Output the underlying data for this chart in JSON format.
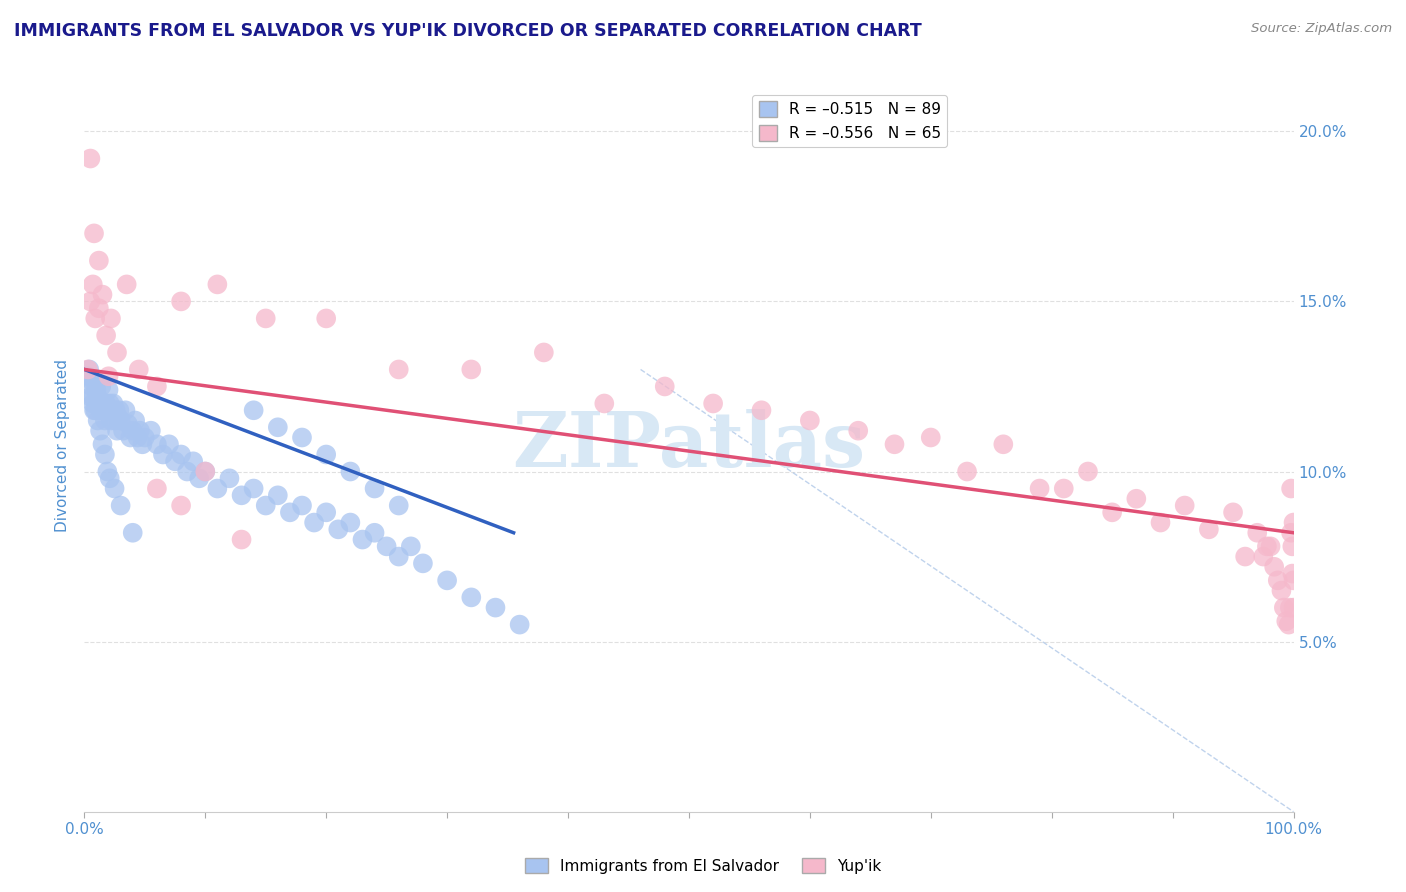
{
  "title": "IMMIGRANTS FROM EL SALVADOR VS YUP'IK DIVORCED OR SEPARATED CORRELATION CHART",
  "source_text": "Source: ZipAtlas.com",
  "ylabel": "Divorced or Separated",
  "xlim": [
    0.0,
    1.0
  ],
  "ylim": [
    0.0,
    0.215
  ],
  "x_ticks": [
    0.0,
    0.1,
    0.2,
    0.3,
    0.4,
    0.5,
    0.6,
    0.7,
    0.8,
    0.9,
    1.0
  ],
  "x_tick_labels": [
    "0.0%",
    "",
    "",
    "",
    "",
    "",
    "",
    "",
    "",
    "",
    "100.0%"
  ],
  "y_tick_values": [
    0.05,
    0.1,
    0.15,
    0.2
  ],
  "y_tick_labels": [
    "5.0%",
    "10.0%",
    "15.0%",
    "20.0%"
  ],
  "legend_entries": [
    {
      "label": "R = –0.515   N = 89",
      "color": "#a8c4f0"
    },
    {
      "label": "R = –0.556   N = 65",
      "color": "#f5b8cb"
    }
  ],
  "blue_scatter_x": [
    0.003,
    0.004,
    0.005,
    0.006,
    0.007,
    0.008,
    0.009,
    0.01,
    0.011,
    0.012,
    0.013,
    0.014,
    0.015,
    0.016,
    0.017,
    0.018,
    0.019,
    0.02,
    0.021,
    0.022,
    0.023,
    0.024,
    0.025,
    0.026,
    0.027,
    0.028,
    0.029,
    0.03,
    0.032,
    0.034,
    0.036,
    0.038,
    0.04,
    0.042,
    0.044,
    0.046,
    0.048,
    0.05,
    0.055,
    0.06,
    0.065,
    0.07,
    0.075,
    0.08,
    0.085,
    0.09,
    0.095,
    0.1,
    0.11,
    0.12,
    0.13,
    0.14,
    0.15,
    0.16,
    0.17,
    0.18,
    0.19,
    0.2,
    0.21,
    0.22,
    0.23,
    0.24,
    0.25,
    0.26,
    0.27,
    0.28,
    0.3,
    0.32,
    0.34,
    0.36,
    0.14,
    0.16,
    0.18,
    0.2,
    0.22,
    0.24,
    0.26,
    0.005,
    0.007,
    0.009,
    0.011,
    0.013,
    0.015,
    0.017,
    0.019,
    0.021,
    0.025,
    0.03,
    0.04
  ],
  "blue_scatter_y": [
    0.128,
    0.13,
    0.122,
    0.125,
    0.12,
    0.118,
    0.126,
    0.124,
    0.122,
    0.12,
    0.118,
    0.125,
    0.12,
    0.118,
    0.115,
    0.12,
    0.118,
    0.124,
    0.12,
    0.115,
    0.118,
    0.12,
    0.115,
    0.118,
    0.112,
    0.116,
    0.118,
    0.115,
    0.112,
    0.118,
    0.114,
    0.11,
    0.112,
    0.115,
    0.11,
    0.112,
    0.108,
    0.11,
    0.112,
    0.108,
    0.105,
    0.108,
    0.103,
    0.105,
    0.1,
    0.103,
    0.098,
    0.1,
    0.095,
    0.098,
    0.093,
    0.095,
    0.09,
    0.093,
    0.088,
    0.09,
    0.085,
    0.088,
    0.083,
    0.085,
    0.08,
    0.082,
    0.078,
    0.075,
    0.078,
    0.073,
    0.068,
    0.063,
    0.06,
    0.055,
    0.118,
    0.113,
    0.11,
    0.105,
    0.1,
    0.095,
    0.09,
    0.127,
    0.122,
    0.118,
    0.115,
    0.112,
    0.108,
    0.105,
    0.1,
    0.098,
    0.095,
    0.09,
    0.082
  ],
  "pink_scatter_x": [
    0.003,
    0.005,
    0.007,
    0.009,
    0.012,
    0.015,
    0.018,
    0.022,
    0.027,
    0.035,
    0.045,
    0.06,
    0.08,
    0.11,
    0.15,
    0.2,
    0.26,
    0.32,
    0.38,
    0.43,
    0.48,
    0.52,
    0.56,
    0.6,
    0.64,
    0.67,
    0.7,
    0.73,
    0.76,
    0.79,
    0.81,
    0.83,
    0.85,
    0.87,
    0.89,
    0.91,
    0.93,
    0.95,
    0.96,
    0.97,
    0.975,
    0.978,
    0.981,
    0.984,
    0.987,
    0.99,
    0.992,
    0.994,
    0.996,
    0.997,
    0.998,
    0.998,
    0.999,
    0.999,
    1.0,
    1.0,
    1.0,
    0.06,
    0.08,
    0.1,
    0.13,
    0.005,
    0.008,
    0.012,
    0.02
  ],
  "pink_scatter_y": [
    0.13,
    0.15,
    0.155,
    0.145,
    0.148,
    0.152,
    0.14,
    0.145,
    0.135,
    0.155,
    0.13,
    0.125,
    0.15,
    0.155,
    0.145,
    0.145,
    0.13,
    0.13,
    0.135,
    0.12,
    0.125,
    0.12,
    0.118,
    0.115,
    0.112,
    0.108,
    0.11,
    0.1,
    0.108,
    0.095,
    0.095,
    0.1,
    0.088,
    0.092,
    0.085,
    0.09,
    0.083,
    0.088,
    0.075,
    0.082,
    0.075,
    0.078,
    0.078,
    0.072,
    0.068,
    0.065,
    0.06,
    0.056,
    0.055,
    0.06,
    0.095,
    0.082,
    0.078,
    0.07,
    0.085,
    0.068,
    0.06,
    0.095,
    0.09,
    0.1,
    0.08,
    0.192,
    0.17,
    0.162,
    0.128
  ],
  "blue_trend": {
    "x_start": 0.0,
    "y_start": 0.13,
    "x_end": 0.355,
    "y_end": 0.082
  },
  "pink_trend": {
    "x_start": 0.0,
    "y_start": 0.13,
    "x_end": 1.0,
    "y_end": 0.082
  },
  "dashed_line": {
    "x_start": 0.46,
    "y_start": 0.13,
    "x_end": 1.0,
    "y_end": 0.0
  },
  "blue_color": "#a8c4f0",
  "blue_trend_color": "#3060c0",
  "pink_color": "#f5b8cb",
  "pink_trend_color": "#e05075",
  "dashed_color": "#b0c8e8",
  "watermark_color": "#d8e8f5",
  "title_color": "#1a1a8c",
  "source_color": "#888888",
  "axis_label_color": "#5090d0",
  "tick_label_color": "#5090d0",
  "grid_color": "#e0e0e0",
  "background_color": "#ffffff"
}
